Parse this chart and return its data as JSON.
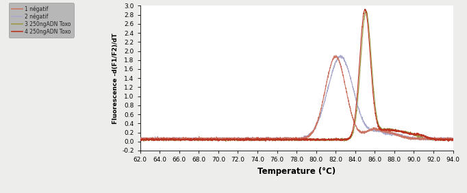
{
  "xlim": [
    62.0,
    94.0
  ],
  "ylim": [
    -0.2,
    3.0
  ],
  "xlabel": "Temperature (°C)",
  "ylabel": "Fluorescence -d(F1/F2)/dT",
  "xticks": [
    62.0,
    64.0,
    66.0,
    68.0,
    70.0,
    72.0,
    74.0,
    76.0,
    78.0,
    80.0,
    82.0,
    84.0,
    86.0,
    88.0,
    90.0,
    92.0,
    94.0
  ],
  "yticks": [
    -0.2,
    0.0,
    0.2,
    0.4,
    0.6,
    0.8,
    1.0,
    1.2,
    1.4,
    1.6,
    1.8,
    2.0,
    2.2,
    2.4,
    2.6,
    2.8,
    3.0
  ],
  "legend_labels": [
    "1 négatif",
    "2 négatif",
    "3 250ngADN Toxo",
    "4 250ngADN Toxo"
  ],
  "legend_colors": [
    "#cc7766",
    "#aaaacc",
    "#999944",
    "#bb3322"
  ],
  "background_color": "#ededeb",
  "plot_bg_color": "#ffffff",
  "legend_bg_color": "#aaaaaa",
  "curve1_color": "#cc7766",
  "curve2_color": "#aaaacc",
  "curve3_color": "#999944",
  "curve4_color": "#bb3322",
  "curve_pos1_color": "#554433",
  "curve_pos2_color": "#cc3322",
  "tick_fontsize": 6.5,
  "label_fontsize": 8.5
}
